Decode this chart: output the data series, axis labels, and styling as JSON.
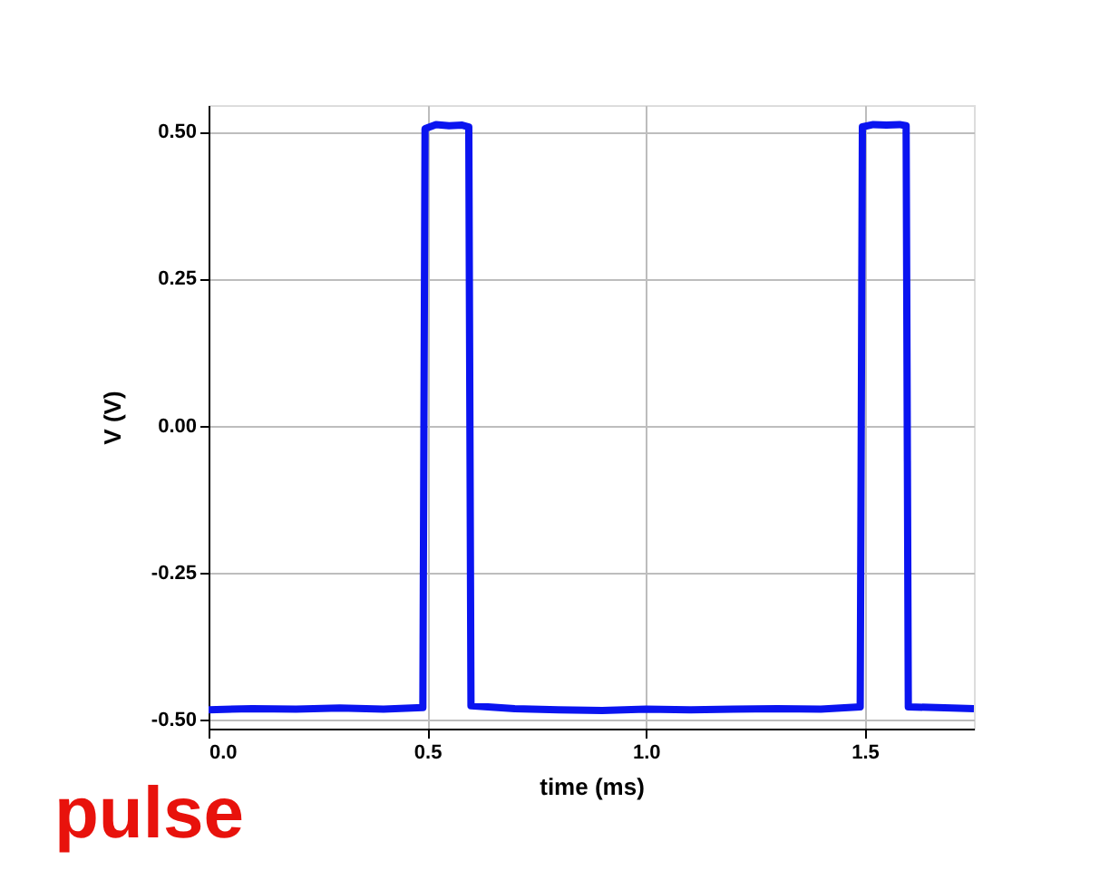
{
  "chart_data": {
    "type": "line",
    "xlabel": "time (ms)",
    "ylabel": "V (V)",
    "annotations": [
      "pulse"
    ],
    "xlim": [
      0,
      1.75
    ],
    "ylim": [
      -0.515,
      0.545
    ],
    "xticks": [
      {
        "value": 0,
        "label": "0.0"
      },
      {
        "value": 0.5,
        "label": "0.5"
      },
      {
        "value": 1,
        "label": "1.0"
      },
      {
        "value": 1.5,
        "label": "1.5"
      }
    ],
    "yticks": [
      {
        "value": -0.5,
        "label": "-0.50"
      },
      {
        "value": -0.25,
        "label": "-0.25"
      },
      {
        "value": 0,
        "label": "0.00"
      },
      {
        "value": 0.25,
        "label": "0.25"
      },
      {
        "value": 0.5,
        "label": "0.50"
      }
    ],
    "grid": true,
    "marker": "none",
    "line_style": "solid",
    "series": [
      {
        "color": "#0a14f0",
        "x": [
          0,
          0.1,
          0.2,
          0.3,
          0.4,
          0.49,
          0.495,
          0.52,
          0.55,
          0.58,
          0.595,
          0.6,
          0.7,
          0.8,
          0.9,
          1.0,
          1.1,
          1.2,
          1.3,
          1.4,
          1.49,
          1.495,
          1.52,
          1.55,
          1.58,
          1.595,
          1.6,
          1.7,
          1.75
        ],
        "values": [
          -0.483,
          -0.481,
          -0.482,
          -0.48,
          -0.482,
          -0.479,
          0.505,
          0.512,
          0.51,
          0.511,
          0.508,
          -0.476,
          -0.481,
          -0.483,
          -0.484,
          -0.482,
          -0.483,
          -0.482,
          -0.481,
          -0.482,
          -0.478,
          0.508,
          0.512,
          0.511,
          0.512,
          0.51,
          -0.478,
          -0.48,
          -0.481
        ]
      }
    ]
  }
}
